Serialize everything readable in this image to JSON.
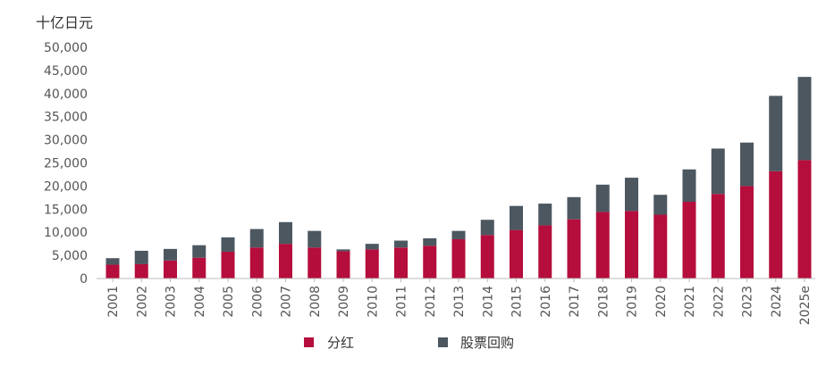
{
  "colors": {
    "dividends": "#b50d3c",
    "buybacks": "#4c5760",
    "axis_text": "#555555",
    "axis_line": "#bbbbbb"
  },
  "chart_data": {
    "type": "bar",
    "stacked": true,
    "unit_label": "十亿日元",
    "categories": [
      "2001",
      "2002",
      "2003",
      "2004",
      "2005",
      "2006",
      "2007",
      "2008",
      "2009",
      "2010",
      "2011",
      "2012",
      "2013",
      "2014",
      "2015",
      "2016",
      "2017",
      "2018",
      "2019",
      "2020",
      "2021",
      "2022",
      "2023",
      "2024",
      "2025e"
    ],
    "series": [
      {
        "name": "分红",
        "color": "#b50d3c",
        "values": [
          3000,
          3100,
          3900,
          4500,
          5800,
          6700,
          7500,
          6700,
          5900,
          6300,
          6700,
          7100,
          8500,
          9400,
          10500,
          11500,
          12800,
          14400,
          14600,
          13800,
          16600,
          18300,
          20000,
          23200,
          25600
        ]
      },
      {
        "name": "股票回购",
        "color": "#4c5760",
        "values": [
          1400,
          2900,
          2500,
          2700,
          3100,
          4000,
          4700,
          3600,
          400,
          1200,
          1500,
          1600,
          1800,
          3300,
          5200,
          4700,
          4800,
          5900,
          7200,
          4300,
          7000,
          9800,
          9400,
          16300,
          18000
        ]
      }
    ],
    "y_ticks": [
      "50,000",
      "45,000",
      "40,000",
      "35,000",
      "30,000",
      "25,000",
      "20,000",
      "15,000",
      "10,000",
      "5,000",
      "0"
    ],
    "ylim": [
      0,
      50000
    ],
    "y_tick_step": 5000,
    "grid": false,
    "legend_position": "bottom-center"
  }
}
